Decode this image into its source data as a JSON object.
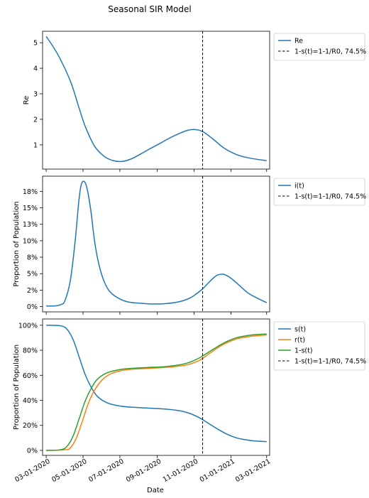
{
  "title": "Seasonal SIR Model",
  "xlabel": "Date",
  "x_ticks": [
    "03-01-2020",
    "05-01-2020",
    "07-01-2020",
    "09-01-2020",
    "11-01-2020",
    "01-01-2021",
    "03-01-2021"
  ],
  "colors": {
    "blue": "#1f77b4",
    "orange": "#ff7f0e",
    "green": "#2ca02c",
    "black": "#000000"
  },
  "chart_data": [
    {
      "type": "line",
      "ylabel": "Re",
      "x_range": [
        "2020-02-24",
        "2021-03-06"
      ],
      "ylim": [
        0.05,
        5.45
      ],
      "y_ticks": [
        {
          "v": 1,
          "label": "1"
        },
        {
          "v": 2,
          "label": "2"
        },
        {
          "v": 3,
          "label": "3"
        },
        {
          "v": 4,
          "label": "4"
        },
        {
          "v": 5,
          "label": "5"
        }
      ],
      "legend_position": "outside-right",
      "series": [
        {
          "name": "Re",
          "color": "#1f77b4",
          "x": [
            "2020-03-01",
            "2020-03-20",
            "2020-04-10",
            "2020-04-25",
            "2020-05-05",
            "2020-05-20",
            "2020-06-05",
            "2020-06-20",
            "2020-07-05",
            "2020-07-20",
            "2020-08-05",
            "2020-08-20",
            "2020-09-05",
            "2020-09-20",
            "2020-10-05",
            "2020-10-20",
            "2020-11-01",
            "2020-11-15",
            "2020-12-01",
            "2020-12-20",
            "2021-01-10",
            "2021-02-01",
            "2021-03-01"
          ],
          "y": [
            5.25,
            4.55,
            3.5,
            2.4,
            1.7,
            0.95,
            0.55,
            0.38,
            0.35,
            0.45,
            0.65,
            0.85,
            1.05,
            1.25,
            1.42,
            1.56,
            1.6,
            1.52,
            1.25,
            0.88,
            0.62,
            0.48,
            0.38
          ]
        },
        {
          "name": "1-s(t)=1-1/R0, 74.5%",
          "color": "#000000",
          "style": "dashed",
          "vertical_x": "2020-11-15"
        }
      ]
    },
    {
      "type": "line",
      "ylabel": "Proportion of Population",
      "x_range": [
        "2020-02-24",
        "2021-03-06"
      ],
      "ylim": [
        -0.008,
        0.198
      ],
      "y_ticks": [
        {
          "v": 0,
          "label": "0%"
        },
        {
          "v": 0.025,
          "label": "2%"
        },
        {
          "v": 0.05,
          "label": "5%"
        },
        {
          "v": 0.075,
          "label": "8%"
        },
        {
          "v": 0.1,
          "label": "10%"
        },
        {
          "v": 0.125,
          "label": "13%"
        },
        {
          "v": 0.15,
          "label": "15%"
        },
        {
          "v": 0.175,
          "label": "18%"
        }
      ],
      "legend_position": "outside-right",
      "series": [
        {
          "name": "i(t)",
          "color": "#1f77b4",
          "x": [
            "2020-03-01",
            "2020-03-15",
            "2020-03-25",
            "2020-04-01",
            "2020-04-10",
            "2020-04-18",
            "2020-04-24",
            "2020-04-28",
            "2020-05-03",
            "2020-05-08",
            "2020-05-14",
            "2020-05-20",
            "2020-05-27",
            "2020-06-05",
            "2020-06-15",
            "2020-06-30",
            "2020-07-15",
            "2020-08-05",
            "2020-08-25",
            "2020-09-15",
            "2020-10-05",
            "2020-10-20",
            "2020-11-01",
            "2020-11-15",
            "2020-12-01",
            "2020-12-10",
            "2020-12-20",
            "2021-01-01",
            "2021-01-15",
            "2021-02-01",
            "2021-03-01"
          ],
          "y": [
            0.001,
            0.001,
            0.003,
            0.009,
            0.04,
            0.1,
            0.16,
            0.185,
            0.19,
            0.178,
            0.145,
            0.1,
            0.065,
            0.038,
            0.022,
            0.012,
            0.007,
            0.005,
            0.004,
            0.0045,
            0.007,
            0.011,
            0.017,
            0.027,
            0.042,
            0.048,
            0.049,
            0.043,
            0.032,
            0.019,
            0.006
          ]
        },
        {
          "name": "1-s(t)=1-1/R0, 74.5%",
          "color": "#000000",
          "style": "dashed",
          "vertical_x": "2020-11-15"
        }
      ]
    },
    {
      "type": "line",
      "ylabel": "Proportion of Population",
      "xlabel": "Date",
      "x_range": [
        "2020-02-24",
        "2021-03-06"
      ],
      "ylim": [
        -0.04,
        1.05
      ],
      "y_ticks": [
        {
          "v": 0,
          "label": "0%"
        },
        {
          "v": 0.2,
          "label": "20%"
        },
        {
          "v": 0.4,
          "label": "40%"
        },
        {
          "v": 0.6,
          "label": "60%"
        },
        {
          "v": 0.8,
          "label": "80%"
        },
        {
          "v": 1.0,
          "label": "100%"
        }
      ],
      "legend_position": "outside-right",
      "series": [
        {
          "name": "s(t)",
          "color": "#1f77b4",
          "x": [
            "2020-03-01",
            "2020-03-25",
            "2020-04-05",
            "2020-04-15",
            "2020-04-25",
            "2020-05-05",
            "2020-05-15",
            "2020-05-25",
            "2020-06-10",
            "2020-06-30",
            "2020-07-20",
            "2020-08-15",
            "2020-09-15",
            "2020-10-10",
            "2020-10-25",
            "2020-11-10",
            "2020-11-25",
            "2020-12-10",
            "2020-12-25",
            "2021-01-10",
            "2021-01-25",
            "2021-02-10",
            "2021-03-01"
          ],
          "y": [
            1.0,
            0.995,
            0.965,
            0.88,
            0.74,
            0.6,
            0.5,
            0.43,
            0.38,
            0.355,
            0.345,
            0.338,
            0.33,
            0.315,
            0.295,
            0.26,
            0.215,
            0.17,
            0.13,
            0.1,
            0.085,
            0.075,
            0.07
          ]
        },
        {
          "name": "r(t)",
          "color": "#ff7f0e",
          "x": [
            "2020-03-01",
            "2020-04-01",
            "2020-04-10",
            "2020-04-20",
            "2020-05-01",
            "2020-05-10",
            "2020-05-20",
            "2020-06-01",
            "2020-06-15",
            "2020-07-01",
            "2020-07-20",
            "2020-08-15",
            "2020-09-15",
            "2020-10-10",
            "2020-10-25",
            "2020-11-10",
            "2020-11-25",
            "2020-12-10",
            "2020-12-25",
            "2021-01-10",
            "2021-01-25",
            "2021-02-10",
            "2021-03-01"
          ],
          "y": [
            0.0,
            0.005,
            0.02,
            0.1,
            0.25,
            0.38,
            0.48,
            0.56,
            0.61,
            0.635,
            0.648,
            0.655,
            0.663,
            0.675,
            0.69,
            0.72,
            0.77,
            0.82,
            0.86,
            0.89,
            0.905,
            0.915,
            0.922
          ]
        },
        {
          "name": "1-s(t)",
          "color": "#2ca02c",
          "x": [
            "2020-03-01",
            "2020-03-25",
            "2020-04-05",
            "2020-04-15",
            "2020-04-25",
            "2020-05-05",
            "2020-05-15",
            "2020-05-25",
            "2020-06-10",
            "2020-06-30",
            "2020-07-20",
            "2020-08-15",
            "2020-09-15",
            "2020-10-10",
            "2020-10-25",
            "2020-11-10",
            "2020-11-25",
            "2020-12-10",
            "2020-12-25",
            "2021-01-10",
            "2021-01-25",
            "2021-02-10",
            "2021-03-01"
          ],
          "y": [
            0.0,
            0.005,
            0.035,
            0.12,
            0.26,
            0.4,
            0.5,
            0.57,
            0.62,
            0.645,
            0.655,
            0.662,
            0.67,
            0.685,
            0.705,
            0.74,
            0.785,
            0.83,
            0.87,
            0.9,
            0.915,
            0.925,
            0.93
          ]
        },
        {
          "name": "1-s(t)=1-1/R0, 74.5%",
          "color": "#000000",
          "style": "dashed",
          "vertical_x": "2020-11-15"
        }
      ]
    }
  ]
}
